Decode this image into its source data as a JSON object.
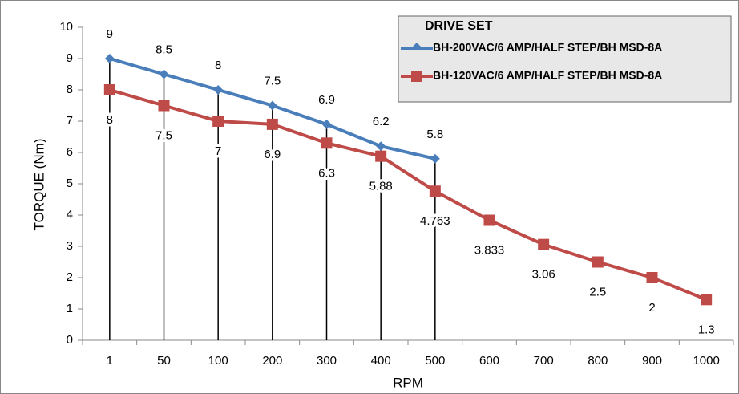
{
  "chart_data": {
    "type": "line",
    "xlabel": "RPM",
    "ylabel": "TORQUE (Nm)",
    "legend_title": "DRIVE SET",
    "legend": "upper right",
    "categories": [
      "1",
      "50",
      "100",
      "200",
      "300",
      "400",
      "500",
      "600",
      "700",
      "800",
      "900",
      "1000"
    ],
    "series": [
      {
        "name": "BH-200VAC/6 AMP/HALF STEP/BH MSD-8A",
        "color": "#4a7ebb",
        "marker": "diamond",
        "values": [
          9,
          8.5,
          8,
          7.5,
          6.9,
          6.2,
          5.8,
          null,
          null,
          null,
          null,
          null
        ]
      },
      {
        "name": "BH-120VAC/6 AMP/HALF STEP/BH MSD-8A",
        "color": "#be4b48",
        "marker": "square",
        "values": [
          8,
          7.5,
          7,
          6.9,
          6.3,
          5.88,
          4.763,
          3.833,
          3.06,
          2.5,
          2,
          1.3
        ]
      }
    ],
    "ylim": [
      0,
      10
    ],
    "yticks": [
      0,
      1,
      2,
      3,
      4,
      5,
      6,
      7,
      8,
      9,
      10
    ],
    "drop_lines": true
  }
}
